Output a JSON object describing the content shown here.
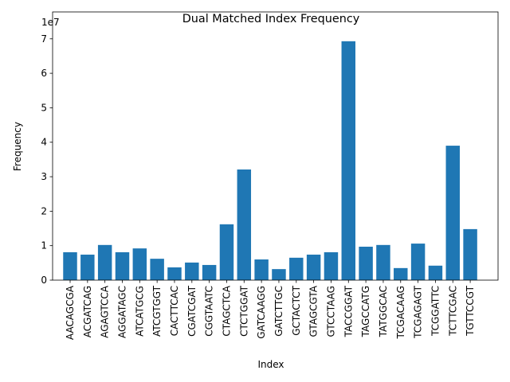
{
  "chart_data": {
    "type": "bar",
    "title": "Dual Matched Index Frequency",
    "x_label": "Index",
    "y_label": "Frequency",
    "y_offset_label": "1e7",
    "categories": [
      "AACAGCGA",
      "ACGATCAG",
      "AGAGTCCA",
      "AGGATAGC",
      "ATCATGCG",
      "ATCGTGGT",
      "CACTTCAC",
      "CGATCGAT",
      "CGGTAATC",
      "CTAGCTCA",
      "CTCTGGAT",
      "GATCAAGG",
      "GATCTTGC",
      "GCTACTCT",
      "GTAGCGTA",
      "GTCCTAAG",
      "TACCGGAT",
      "TAGCCATG",
      "TATGGCAC",
      "TCGACAAG",
      "TCGAGAGT",
      "TCGGATTC",
      "TCTTCGAC",
      "TGTTCCGT"
    ],
    "values": [
      0.81,
      0.74,
      1.02,
      0.81,
      0.92,
      0.62,
      0.37,
      0.51,
      0.44,
      1.62,
      3.21,
      0.6,
      0.32,
      0.65,
      0.74,
      0.81,
      6.93,
      0.97,
      1.02,
      0.35,
      1.06,
      0.42,
      3.9,
      1.48
    ],
    "color": "#1f77b4",
    "ylim": [
      0,
      7.78
    ],
    "yticks": [
      0,
      1,
      2,
      3,
      4,
      5,
      6,
      7
    ],
    "grid": false
  }
}
